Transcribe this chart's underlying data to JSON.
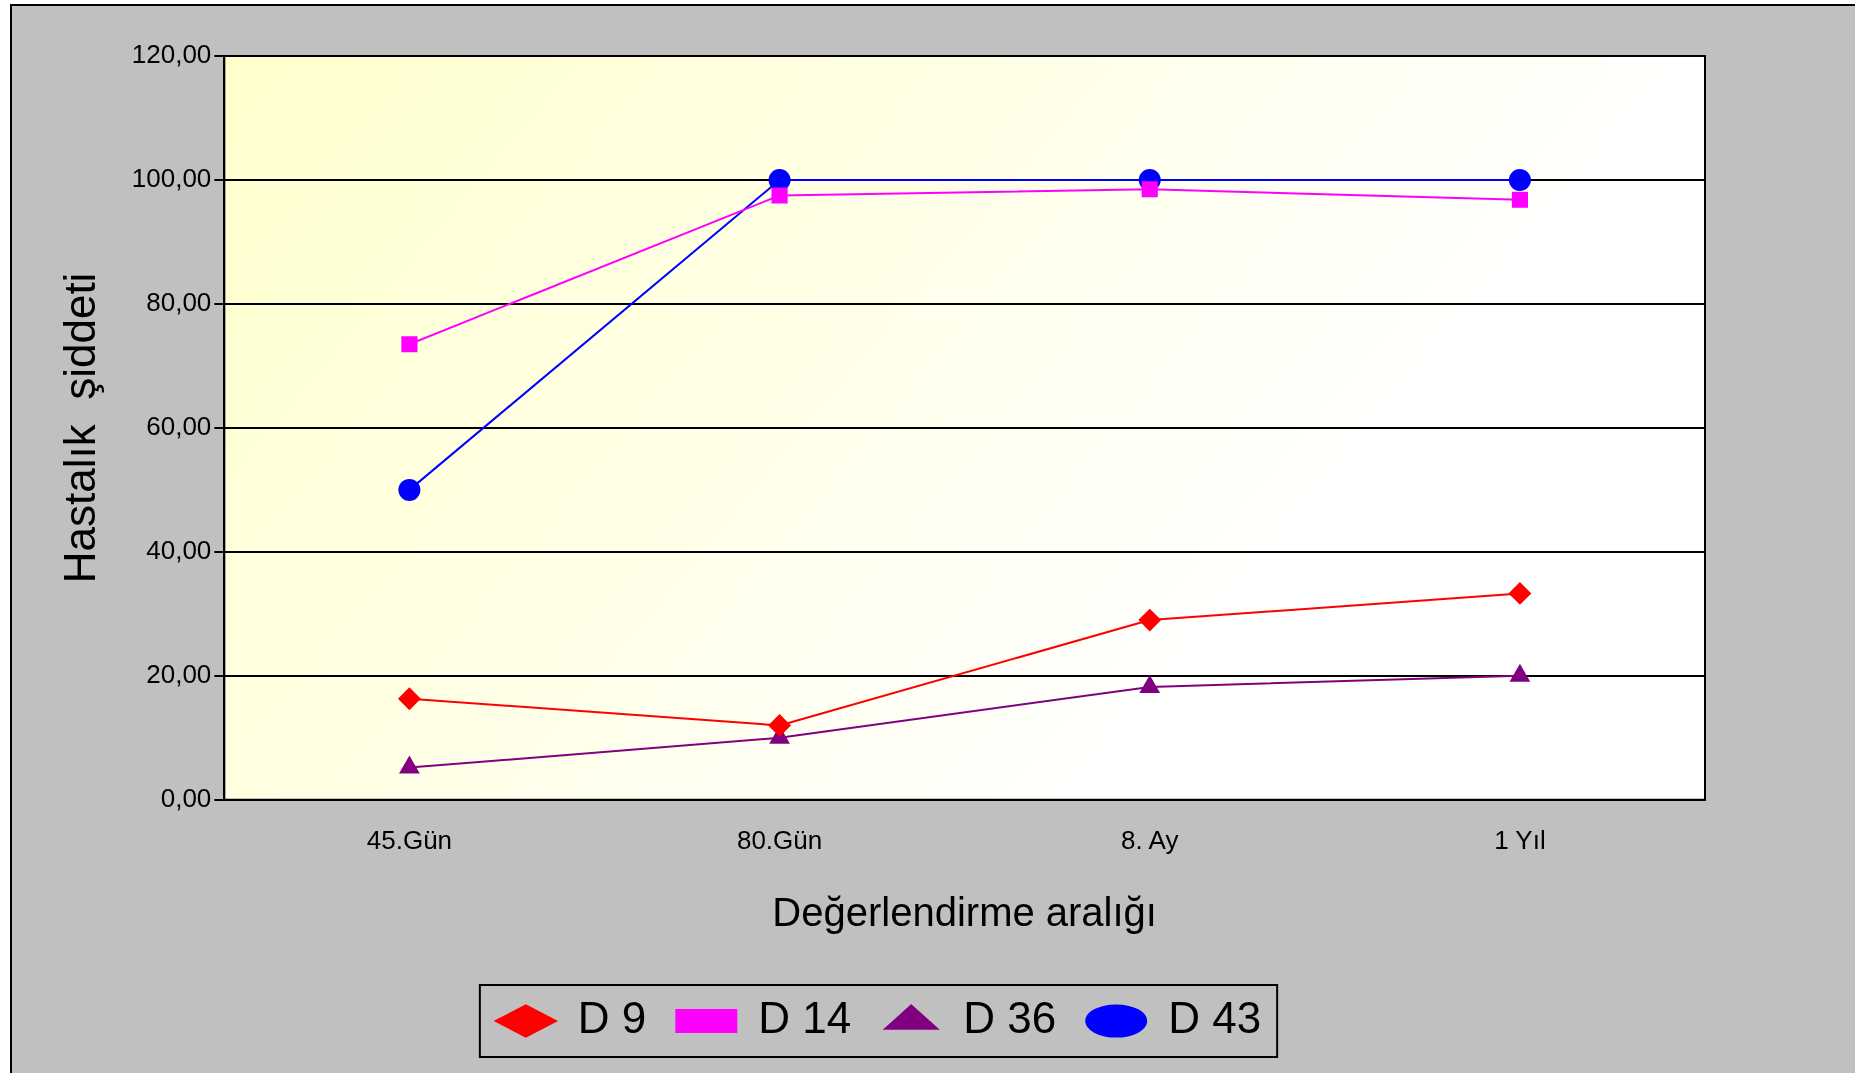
{
  "chart_data": {
    "type": "line",
    "xlabel": "Değerlendirme aralığı",
    "ylabel": "Hastalık  şiddeti",
    "categories": [
      "45.Gün",
      "80.Gün",
      "8. Ay",
      "1 Yıl"
    ],
    "series": [
      {
        "name": "D 9",
        "color": "#ff0000",
        "marker": "diamond",
        "values": [
          16.3,
          12,
          29,
          33.3
        ]
      },
      {
        "name": "D 14",
        "color": "#ff00ff",
        "marker": "square",
        "values": [
          73.5,
          97.5,
          98.5,
          96.8
        ]
      },
      {
        "name": "D 36",
        "color": "#800080",
        "marker": "triangle",
        "values": [
          5.2,
          10,
          18.2,
          20
        ]
      },
      {
        "name": "D 43",
        "color": "#0000ff",
        "marker": "circle",
        "values": [
          50,
          100,
          100,
          100
        ]
      }
    ],
    "ylim": [
      0,
      120
    ],
    "yticks": [
      {
        "value": 0,
        "label": "0,00"
      },
      {
        "value": 20,
        "label": "20,00"
      },
      {
        "value": 40,
        "label": "40,00"
      },
      {
        "value": 60,
        "label": "60,00"
      },
      {
        "value": 80,
        "label": "80,00"
      },
      {
        "value": 100,
        "label": "100,00"
      },
      {
        "value": 120,
        "label": "120,00"
      }
    ],
    "grid": "y",
    "legend": "bottom",
    "line_style": "solid"
  }
}
